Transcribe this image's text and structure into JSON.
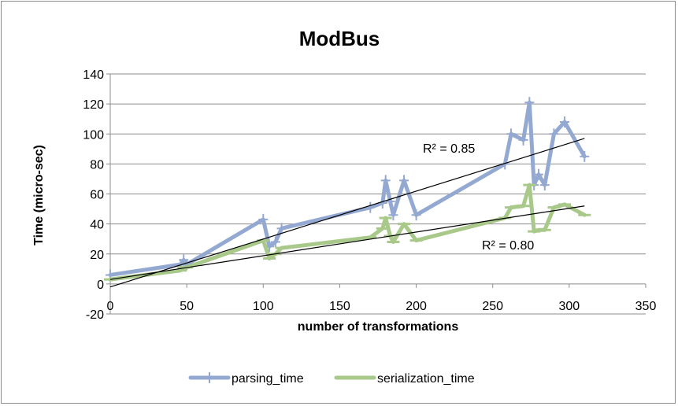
{
  "chart_data": {
    "type": "line",
    "title": "ModBus",
    "xlabel": "number of transformations",
    "ylabel": "Time (micro-sec)",
    "xlim": [
      0,
      350
    ],
    "ylim": [
      -20,
      140
    ],
    "xticks": [
      0,
      50,
      100,
      150,
      200,
      250,
      300,
      350
    ],
    "yticks": [
      -20,
      0,
      20,
      40,
      60,
      80,
      100,
      120,
      140
    ],
    "grid": "horizontal",
    "legend": "bottom",
    "series": [
      {
        "name": "parsing_time",
        "color": "#94a9d1",
        "marker": "plus",
        "points": [
          [
            0,
            6
          ],
          [
            46,
            13
          ],
          [
            48,
            16
          ],
          [
            50,
            13
          ],
          [
            100,
            43
          ],
          [
            104,
            25
          ],
          [
            108,
            28
          ],
          [
            112,
            37
          ],
          [
            170,
            51
          ],
          [
            178,
            54
          ],
          [
            180,
            69
          ],
          [
            183,
            55
          ],
          [
            185,
            46
          ],
          [
            192,
            69
          ],
          [
            200,
            46
          ],
          [
            258,
            80
          ],
          [
            262,
            100
          ],
          [
            270,
            96
          ],
          [
            274,
            121
          ],
          [
            277,
            66
          ],
          [
            280,
            73
          ],
          [
            284,
            66
          ],
          [
            290,
            100
          ],
          [
            297,
            108
          ],
          [
            310,
            85
          ]
        ]
      },
      {
        "name": "serialization_time",
        "color": "#a9c98a",
        "marker": "minus",
        "points": [
          [
            0,
            3
          ],
          [
            46,
            9
          ],
          [
            48,
            11
          ],
          [
            50,
            11
          ],
          [
            100,
            29
          ],
          [
            104,
            17
          ],
          [
            108,
            20
          ],
          [
            112,
            24
          ],
          [
            170,
            31
          ],
          [
            178,
            37
          ],
          [
            180,
            44
          ],
          [
            183,
            32
          ],
          [
            185,
            28
          ],
          [
            192,
            40
          ],
          [
            200,
            29
          ],
          [
            258,
            44
          ],
          [
            262,
            51
          ],
          [
            270,
            52
          ],
          [
            274,
            66
          ],
          [
            277,
            35
          ],
          [
            280,
            36
          ],
          [
            284,
            36
          ],
          [
            290,
            51
          ],
          [
            297,
            53
          ],
          [
            310,
            46
          ]
        ]
      }
    ],
    "trendlines": [
      {
        "series": "parsing_time",
        "x": [
          0,
          310
        ],
        "y": [
          -2,
          97
        ],
        "r2_label": "R² = 0.85",
        "label_at": [
          535,
          192
        ]
      },
      {
        "series": "serialization_time",
        "x": [
          0,
          310
        ],
        "y": [
          3,
          52
        ],
        "r2_label": "R² = 0.80",
        "label_at": [
          610,
          315
        ]
      }
    ]
  }
}
